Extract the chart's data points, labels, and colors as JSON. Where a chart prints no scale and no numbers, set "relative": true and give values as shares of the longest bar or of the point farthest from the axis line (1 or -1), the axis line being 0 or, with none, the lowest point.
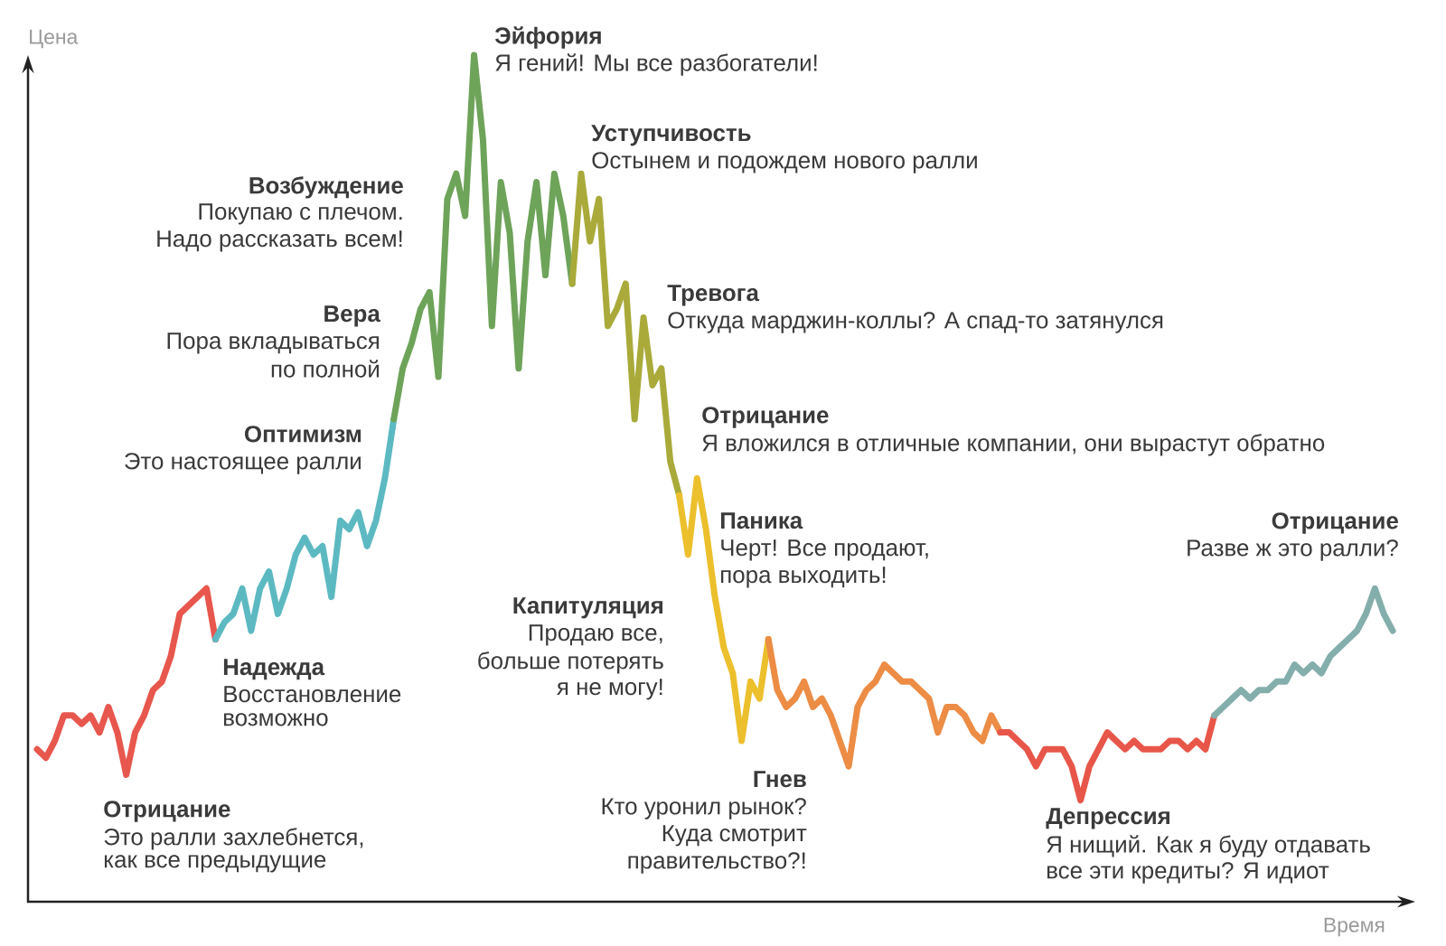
{
  "chart_data": {
    "type": "line",
    "relative": true,
    "xlabel": "Время",
    "ylabel": "Цена",
    "categories": [
      null,
      null,
      null,
      null,
      null,
      null,
      null,
      null,
      null,
      null,
      null,
      null,
      null,
      null,
      null,
      null,
      null,
      null,
      null,
      null,
      null,
      null,
      null,
      null,
      null,
      null,
      null,
      null,
      null,
      null,
      null,
      null,
      null,
      null,
      null,
      null,
      null,
      null,
      null,
      null,
      null,
      null,
      null,
      null,
      null,
      null,
      null,
      null,
      null,
      null,
      null,
      null,
      null,
      null,
      null,
      null,
      null,
      null,
      null,
      null,
      null,
      null,
      null,
      null,
      null,
      null,
      null,
      null,
      null,
      null,
      null,
      null,
      null,
      null,
      null,
      null,
      null,
      null,
      null,
      null,
      null,
      null,
      null,
      null,
      null,
      null,
      null,
      null,
      null,
      null,
      null,
      null,
      null,
      null,
      null,
      null,
      null,
      null,
      null,
      null,
      null,
      null,
      null,
      null,
      null,
      null,
      null,
      null,
      null,
      null,
      null,
      null,
      null,
      null,
      null,
      null,
      null,
      null,
      null,
      null,
      null,
      null,
      null,
      null,
      null,
      null,
      null,
      null,
      null,
      null,
      null,
      null,
      null,
      null,
      null,
      null,
      null,
      null,
      null,
      null,
      null,
      null,
      null,
      null,
      null,
      null,
      null,
      null,
      null,
      null,
      null,
      null,
      null
    ],
    "series": [
      {
        "color": "#e8574d",
        "values": [
          0.18,
          0.17,
          0.19,
          0.22,
          0.22,
          0.21,
          0.22,
          0.2,
          0.23,
          0.2,
          0.15,
          0.2,
          0.22,
          0.25,
          0.26,
          0.29,
          0.34,
          0.35,
          0.36,
          0.37,
          0.31,
          null,
          null,
          null,
          null,
          null,
          null,
          null,
          null,
          null,
          null,
          null,
          null,
          null,
          null,
          null,
          null,
          null,
          null,
          null,
          null,
          null,
          null,
          null,
          null,
          null,
          null,
          null,
          null,
          null,
          null,
          null,
          null,
          null,
          null,
          null,
          null,
          null,
          null,
          null,
          null,
          null,
          null,
          null,
          null,
          null,
          null,
          null,
          null,
          null,
          null,
          null,
          null,
          null,
          null,
          null,
          null,
          null,
          null,
          null,
          null,
          null,
          null,
          null,
          null,
          null,
          null,
          null,
          null,
          null,
          null,
          null,
          null,
          null,
          null,
          null,
          null,
          null,
          null,
          null,
          null,
          null,
          null,
          null,
          null,
          null,
          null,
          null,
          null,
          null,
          null,
          null,
          null,
          null,
          null,
          null,
          null,
          null,
          null,
          null,
          null,
          null,
          null,
          null,
          null,
          null,
          null,
          null,
          null,
          null,
          null,
          null,
          null,
          null,
          null,
          null,
          null,
          null,
          null,
          null,
          null,
          null,
          null,
          null,
          null,
          null,
          null,
          null,
          null,
          null,
          null,
          null,
          null
        ]
      },
      {
        "color": "#5db9c1",
        "values": [
          null,
          null,
          null,
          null,
          null,
          null,
          null,
          null,
          null,
          null,
          null,
          null,
          null,
          null,
          null,
          null,
          null,
          null,
          null,
          null,
          0.31,
          0.33,
          0.34,
          0.37,
          0.32,
          0.37,
          0.39,
          0.34,
          0.37,
          0.41,
          0.43,
          0.41,
          0.42,
          0.36,
          0.45,
          0.44,
          0.46,
          0.42,
          0.45,
          0.5,
          0.57,
          null,
          null,
          null,
          null,
          null,
          null,
          null,
          null,
          null,
          null,
          null,
          null,
          null,
          null,
          null,
          null,
          null,
          null,
          null,
          null,
          null,
          null,
          null,
          null,
          null,
          null,
          null,
          null,
          null,
          null,
          null,
          null,
          null,
          null,
          null,
          null,
          null,
          null,
          null,
          null,
          null,
          null,
          null,
          null,
          null,
          null,
          null,
          null,
          null,
          null,
          null,
          null,
          null,
          null,
          null,
          null,
          null,
          null,
          null,
          null,
          null,
          null,
          null,
          null,
          null,
          null,
          null,
          null,
          null,
          null,
          null,
          null,
          null,
          null,
          null,
          null,
          null,
          null,
          null,
          null,
          null,
          null,
          null,
          null,
          null,
          null,
          null,
          null,
          null,
          null,
          null,
          null,
          null,
          null,
          null,
          null,
          null,
          null,
          null,
          null,
          null,
          null,
          null,
          null,
          null,
          null,
          null,
          null,
          null,
          null,
          null,
          null
        ]
      },
      {
        "color": "#6ea35a",
        "values": [
          null,
          null,
          null,
          null,
          null,
          null,
          null,
          null,
          null,
          null,
          null,
          null,
          null,
          null,
          null,
          null,
          null,
          null,
          null,
          null,
          null,
          null,
          null,
          null,
          null,
          null,
          null,
          null,
          null,
          null,
          null,
          null,
          null,
          null,
          null,
          null,
          null,
          null,
          null,
          null,
          0.57,
          0.63,
          0.66,
          0.7,
          0.72,
          0.62,
          0.83,
          0.86,
          0.81,
          1,
          0.9,
          0.68,
          0.85,
          0.79,
          0.63,
          0.78,
          0.85,
          0.74,
          0.86,
          0.81,
          0.73,
          null,
          null,
          null,
          null,
          null,
          null,
          null,
          null,
          null,
          null,
          null,
          null,
          null,
          null,
          null,
          null,
          null,
          null,
          null,
          null,
          null,
          null,
          null,
          null,
          null,
          null,
          null,
          null,
          null,
          null,
          null,
          null,
          null,
          null,
          null,
          null,
          null,
          null,
          null,
          null,
          null,
          null,
          null,
          null,
          null,
          null,
          null,
          null,
          null,
          null,
          null,
          null,
          null,
          null,
          null,
          null,
          null,
          null,
          null,
          null,
          null,
          null,
          null,
          null,
          null,
          null,
          null,
          null,
          null,
          null,
          null,
          null,
          null,
          null,
          null,
          null,
          null,
          null,
          null,
          null,
          null,
          null,
          null,
          null,
          null,
          null,
          null,
          null,
          null,
          null,
          null,
          null
        ]
      },
      {
        "color": "#a9aa3a",
        "values": [
          null,
          null,
          null,
          null,
          null,
          null,
          null,
          null,
          null,
          null,
          null,
          null,
          null,
          null,
          null,
          null,
          null,
          null,
          null,
          null,
          null,
          null,
          null,
          null,
          null,
          null,
          null,
          null,
          null,
          null,
          null,
          null,
          null,
          null,
          null,
          null,
          null,
          null,
          null,
          null,
          null,
          null,
          null,
          null,
          null,
          null,
          null,
          null,
          null,
          null,
          null,
          null,
          null,
          null,
          null,
          null,
          null,
          null,
          null,
          null,
          0.73,
          0.86,
          0.78,
          0.83,
          0.68,
          0.7,
          0.73,
          0.57,
          0.69,
          0.61,
          0.63,
          0.52,
          0.48,
          null,
          null,
          null,
          null,
          null,
          null,
          null,
          null,
          null,
          null,
          null,
          null,
          null,
          null,
          null,
          null,
          null,
          null,
          null,
          null,
          null,
          null,
          null,
          null,
          null,
          null,
          null,
          null,
          null,
          null,
          null,
          null,
          null,
          null,
          null,
          null,
          null,
          null,
          null,
          null,
          null,
          null,
          null,
          null,
          null,
          null,
          null,
          null,
          null,
          null,
          null,
          null,
          null,
          null,
          null,
          null,
          null,
          null,
          null,
          null,
          null,
          null,
          null,
          null,
          null,
          null,
          null,
          null,
          null,
          null,
          null,
          null,
          null,
          null,
          null,
          null,
          null,
          null,
          null,
          null
        ]
      },
      {
        "color": "#ecbf2c",
        "values": [
          null,
          null,
          null,
          null,
          null,
          null,
          null,
          null,
          null,
          null,
          null,
          null,
          null,
          null,
          null,
          null,
          null,
          null,
          null,
          null,
          null,
          null,
          null,
          null,
          null,
          null,
          null,
          null,
          null,
          null,
          null,
          null,
          null,
          null,
          null,
          null,
          null,
          null,
          null,
          null,
          null,
          null,
          null,
          null,
          null,
          null,
          null,
          null,
          null,
          null,
          null,
          null,
          null,
          null,
          null,
          null,
          null,
          null,
          null,
          null,
          null,
          null,
          null,
          null,
          null,
          null,
          null,
          null,
          null,
          null,
          null,
          null,
          0.48,
          0.41,
          0.5,
          0.44,
          0.36,
          0.3,
          0.27,
          0.19,
          0.26,
          0.24,
          0.31,
          null,
          null,
          null,
          null,
          null,
          null,
          null,
          null,
          null,
          null,
          null,
          null,
          null,
          null,
          null,
          null,
          null,
          null,
          null,
          null,
          null,
          null,
          null,
          null,
          null,
          null,
          null,
          null,
          null,
          null,
          null,
          null,
          null,
          null,
          null,
          null,
          null,
          null,
          null,
          null,
          null,
          null,
          null,
          null,
          null,
          null,
          null,
          null,
          null,
          null,
          null,
          null,
          null,
          null,
          null,
          null,
          null,
          null,
          null,
          null,
          null,
          null,
          null,
          null,
          null,
          null,
          null,
          null,
          null,
          null
        ]
      },
      {
        "color": "#ec8c45",
        "values": [
          null,
          null,
          null,
          null,
          null,
          null,
          null,
          null,
          null,
          null,
          null,
          null,
          null,
          null,
          null,
          null,
          null,
          null,
          null,
          null,
          null,
          null,
          null,
          null,
          null,
          null,
          null,
          null,
          null,
          null,
          null,
          null,
          null,
          null,
          null,
          null,
          null,
          null,
          null,
          null,
          null,
          null,
          null,
          null,
          null,
          null,
          null,
          null,
          null,
          null,
          null,
          null,
          null,
          null,
          null,
          null,
          null,
          null,
          null,
          null,
          null,
          null,
          null,
          null,
          null,
          null,
          null,
          null,
          null,
          null,
          null,
          null,
          null,
          null,
          null,
          null,
          null,
          null,
          null,
          null,
          null,
          null,
          0.31,
          0.25,
          0.23,
          0.24,
          0.26,
          0.23,
          0.24,
          0.22,
          0.19,
          0.16,
          0.23,
          0.25,
          0.26,
          0.28,
          0.27,
          0.26,
          0.26,
          0.25,
          0.24,
          0.2,
          0.23,
          0.23,
          0.22,
          0.2,
          0.19,
          0.22,
          0.2,
          null,
          null,
          null,
          null,
          null,
          null,
          null,
          null,
          null,
          null,
          null,
          null,
          null,
          null,
          null,
          null,
          null,
          null,
          null,
          null,
          null,
          null,
          null,
          null,
          null,
          null,
          null,
          null,
          null,
          null,
          null,
          null,
          null,
          null,
          null,
          null,
          null,
          null,
          null,
          null,
          null,
          null,
          null,
          null
        ]
      },
      {
        "color": "#e8564a",
        "values": [
          null,
          null,
          null,
          null,
          null,
          null,
          null,
          null,
          null,
          null,
          null,
          null,
          null,
          null,
          null,
          null,
          null,
          null,
          null,
          null,
          null,
          null,
          null,
          null,
          null,
          null,
          null,
          null,
          null,
          null,
          null,
          null,
          null,
          null,
          null,
          null,
          null,
          null,
          null,
          null,
          null,
          null,
          null,
          null,
          null,
          null,
          null,
          null,
          null,
          null,
          null,
          null,
          null,
          null,
          null,
          null,
          null,
          null,
          null,
          null,
          null,
          null,
          null,
          null,
          null,
          null,
          null,
          null,
          null,
          null,
          null,
          null,
          null,
          null,
          null,
          null,
          null,
          null,
          null,
          null,
          null,
          null,
          null,
          null,
          null,
          null,
          null,
          null,
          null,
          null,
          null,
          null,
          null,
          null,
          null,
          null,
          null,
          null,
          null,
          null,
          null,
          null,
          null,
          null,
          null,
          null,
          null,
          null,
          0.2,
          0.2,
          0.19,
          0.18,
          0.16,
          0.18,
          0.18,
          0.18,
          0.16,
          0.12,
          0.16,
          0.18,
          0.2,
          0.19,
          0.18,
          0.19,
          0.18,
          0.18,
          0.18,
          0.19,
          0.19,
          0.18,
          0.19,
          0.18,
          0.22,
          null,
          null,
          null,
          null,
          null,
          null,
          null,
          null,
          null,
          null,
          null,
          null,
          null,
          null,
          null,
          null,
          null,
          null,
          null,
          null
        ]
      },
      {
        "color": "#84aeac",
        "values": [
          null,
          null,
          null,
          null,
          null,
          null,
          null,
          null,
          null,
          null,
          null,
          null,
          null,
          null,
          null,
          null,
          null,
          null,
          null,
          null,
          null,
          null,
          null,
          null,
          null,
          null,
          null,
          null,
          null,
          null,
          null,
          null,
          null,
          null,
          null,
          null,
          null,
          null,
          null,
          null,
          null,
          null,
          null,
          null,
          null,
          null,
          null,
          null,
          null,
          null,
          null,
          null,
          null,
          null,
          null,
          null,
          null,
          null,
          null,
          null,
          null,
          null,
          null,
          null,
          null,
          null,
          null,
          null,
          null,
          null,
          null,
          null,
          null,
          null,
          null,
          null,
          null,
          null,
          null,
          null,
          null,
          null,
          null,
          null,
          null,
          null,
          null,
          null,
          null,
          null,
          null,
          null,
          null,
          null,
          null,
          null,
          null,
          null,
          null,
          null,
          null,
          null,
          null,
          null,
          null,
          null,
          null,
          null,
          null,
          null,
          null,
          null,
          null,
          null,
          null,
          null,
          null,
          null,
          null,
          null,
          null,
          null,
          null,
          null,
          null,
          null,
          null,
          null,
          null,
          null,
          null,
          null,
          0.22,
          0.23,
          0.24,
          0.25,
          0.24,
          0.25,
          0.25,
          0.26,
          0.26,
          0.28,
          0.27,
          0.28,
          0.27,
          0.29,
          0.3,
          0.31,
          0.32,
          0.34,
          0.37,
          0.34,
          0.32
        ]
      }
    ],
    "annotations": [
      "Отрицание",
      "Это ралли захлебнется,",
      "как все предыдущие",
      "Надежда",
      "Восстановление",
      "возможно",
      "Оптимизм",
      "Это настоящее ралли",
      "Вера",
      "Пора вкладываться",
      "по полной",
      "Возбуждение",
      "Покупаю с плечом.",
      "Надо рассказать всем!",
      "Эйфория",
      "Я гений! Мы все разбогатели!",
      "Уступчивость",
      "Остынем и подождем нового ралли",
      "Тревога",
      "Откуда марджин-коллы? А спад-то затянулся",
      "Отрицание",
      "Я вложился в отличные компании, они вырастут обратно",
      "Паника",
      "Черт! Все продают,",
      "пора выходить!",
      "Капитуляция",
      "Продаю все,",
      "больше потерять",
      "я не могу!",
      "Гнев",
      "Кто уронил рынок?",
      "Куда смотрит",
      "правительство?!",
      "Депрессия",
      "Я нищий. Как я буду отдавать",
      "все эти кредиты? Я идиот",
      "Отрицание",
      "Разве ж это ралли?"
    ]
  }
}
